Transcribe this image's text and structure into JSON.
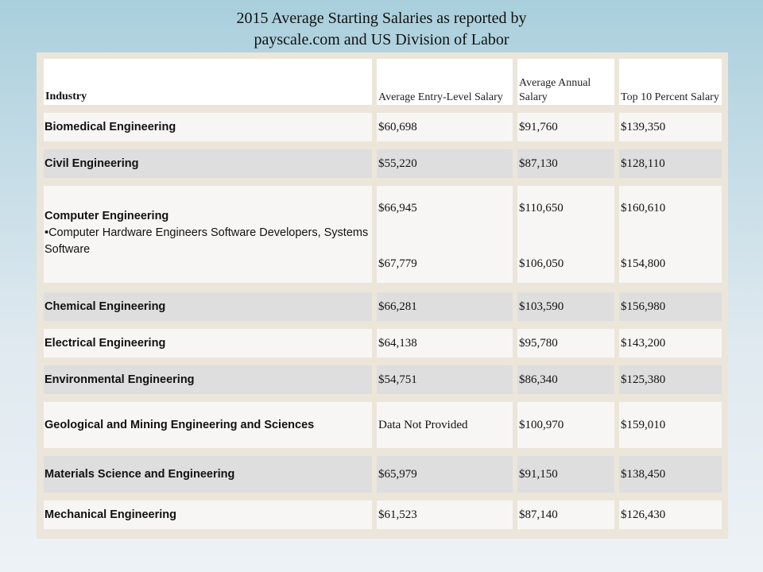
{
  "title": {
    "line1": "2015 Average Starting Salaries as reported by",
    "line2": "payscale.com and US Division of Labor"
  },
  "table": {
    "headers": {
      "industry": "Industry",
      "entry": "Average Entry-Level Salary",
      "annual": "Average Annual Salary",
      "top10": "Top 10 Percent Salary"
    },
    "rows": [
      {
        "industry": "Biomedical Engineering",
        "entry": "$60,698",
        "annual": "$91,760",
        "top10": "$139,350"
      },
      {
        "industry": "Civil Engineering",
        "entry": "$55,220",
        "annual": "$87,130",
        "top10": "$128,110"
      },
      {
        "industry": "Computer Engineering",
        "sub": "•Computer Hardware Engineers Software Developers, Systems Software",
        "entry": "$66,945",
        "annual": "$110,650",
        "top10": "$160,610",
        "entry2": "$67,779",
        "annual2": "$106,050",
        "top10_2": "$154,800"
      },
      {
        "industry": "Chemical Engineering",
        "entry": "$66,281",
        "annual": "$103,590",
        "top10": "$156,980"
      },
      {
        "industry": "Electrical Engineering",
        "entry": "$64,138",
        "annual": "$95,780",
        "top10": "$143,200"
      },
      {
        "industry": "Environmental Engineering",
        "entry": "$54,751",
        "annual": "$86,340",
        "top10": "$125,380"
      },
      {
        "industry": "Geological and Mining Engineering and Sciences",
        "entry": "Data Not Provided",
        "annual": "$100,970",
        "top10": "$159,010"
      },
      {
        "industry": "Materials Science and Engineering",
        "entry": "$65,979",
        "annual": "$91,150",
        "top10": "$138,450"
      },
      {
        "industry": "Mechanical Engineering",
        "entry": "$61,523",
        "annual": "$87,140",
        "top10": "$126,430"
      }
    ]
  }
}
